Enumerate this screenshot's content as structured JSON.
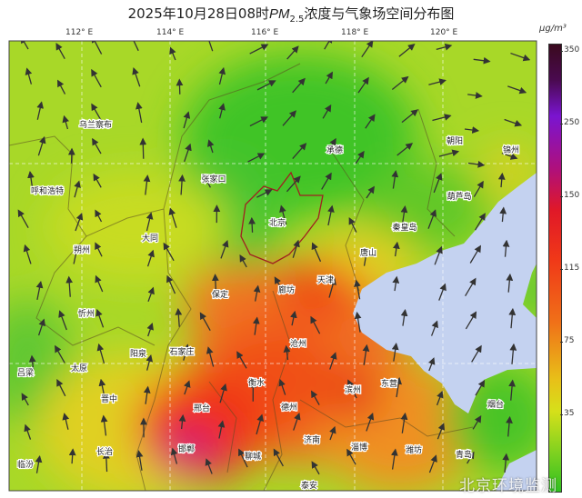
{
  "title": {
    "prefix": "2025年10月28日08时",
    "pm": "PM",
    "sub": "2.5",
    "suffix": "浓度与气象场空间分布图"
  },
  "longitude_labels": [
    "112° E",
    "114° E",
    "116° E",
    "118° E",
    "120° E"
  ],
  "colorbar": {
    "unit": "μg/m³",
    "ticks": [
      "350",
      "250",
      "150",
      "115",
      "75",
      "35"
    ]
  },
  "cities": [
    "乌兰察布",
    "呼和浩特",
    "张家口",
    "承德",
    "朝阳",
    "锦州",
    "葫芦岛",
    "秦皇岛",
    "北京",
    "大同",
    "朔州",
    "唐山",
    "天津",
    "廊坊",
    "保定",
    "忻州",
    "石家庄",
    "阳泉",
    "太原",
    "吕梁",
    "晋中",
    "衡水",
    "沧州",
    "滨州",
    "东营",
    "德州",
    "邢台",
    "邯郸",
    "长治",
    "聊城",
    "济南",
    "淄博",
    "潍坊",
    "青岛",
    "烟台",
    "临汾",
    "泰安"
  ],
  "watermark": "北京环境监测",
  "colors": {
    "sea": "#c4d2f0",
    "low": "#30c020",
    "mid": "#e8c018",
    "high": "#f03818",
    "peak": "#b0107a"
  }
}
